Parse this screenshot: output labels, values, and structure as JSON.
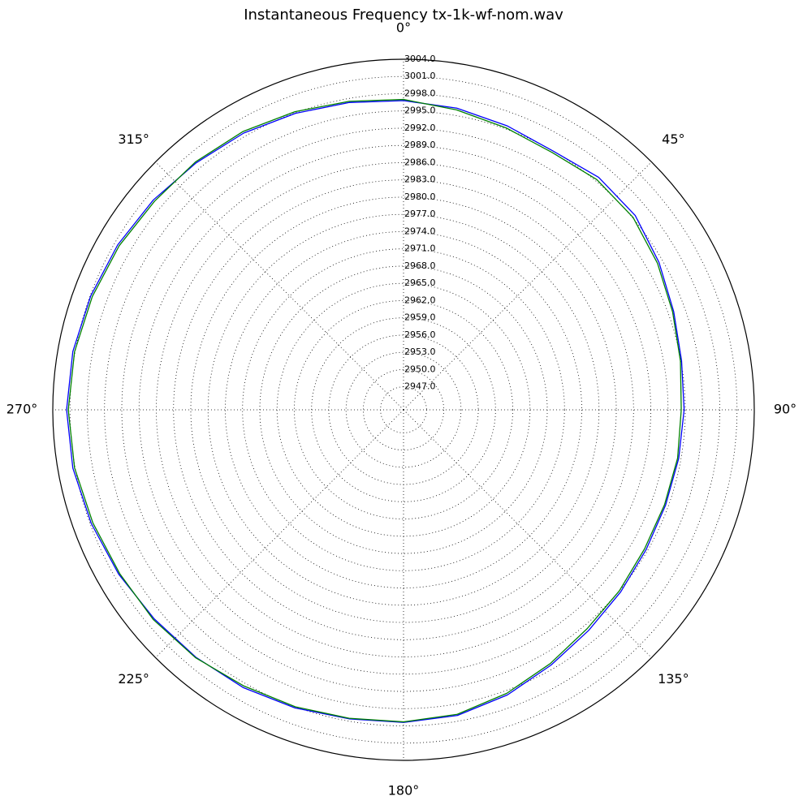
{
  "chart_data": {
    "type": "polar-line",
    "title": "Instantaneous Frequency  tx-1k-wf-nom.wav",
    "x": [
      0,
      10,
      20,
      30,
      40,
      50,
      60,
      70,
      80,
      90,
      100,
      110,
      120,
      130,
      140,
      150,
      160,
      170,
      180,
      190,
      200,
      210,
      220,
      230,
      240,
      250,
      260,
      270,
      280,
      290,
      300,
      310,
      320,
      330,
      340,
      350,
      360
    ],
    "series": [
      {
        "color": "#0000ff",
        "values": [
          2996.8,
          2996.3,
          2995.6,
          2995.0,
          2995.8,
          2995.6,
          2994.3,
          2993.0,
          2992.1,
          2991.8,
          2991.6,
          2991.5,
          2991.7,
          2992.3,
          2993.1,
          2994.3,
          2995.8,
          2997.0,
          2997.4,
          2997.6,
          2998.2,
          2998.8,
          2999.2,
          2999.6,
          3000.2,
          3000.8,
          3001.4,
          3001.6,
          3001.4,
          3000.9,
          3000.4,
          2999.8,
          2999.1,
          2998.6,
          2997.9,
          2997.3,
          2996.8
        ]
      },
      {
        "color": "#008000",
        "values": [
          2997.0,
          2996.0,
          2995.2,
          2994.7,
          2995.3,
          2995.1,
          2994.0,
          2992.8,
          2991.9,
          2991.3,
          2991.4,
          2991.3,
          2991.4,
          2992.0,
          2992.7,
          2994.0,
          2995.5,
          2996.8,
          2997.3,
          2997.5,
          2998.0,
          2998.5,
          2999.3,
          2999.8,
          3000.0,
          3000.5,
          3001.1,
          3001.3,
          3001.1,
          3000.6,
          3000.1,
          2999.5,
          2999.3,
          2998.9,
          2998.2,
          2997.5,
          2997.0
        ]
      }
    ],
    "ylim": [
      2943,
      3004
    ],
    "yticks": [
      {
        "value": 2947,
        "label": "2947.0"
      },
      {
        "value": 2950,
        "label": "2950.0"
      },
      {
        "value": 2953,
        "label": "2953.0"
      },
      {
        "value": 2956,
        "label": "2956.0"
      },
      {
        "value": 2959,
        "label": "2959.0"
      },
      {
        "value": 2962,
        "label": "2962.0"
      },
      {
        "value": 2965,
        "label": "2965.0"
      },
      {
        "value": 2968,
        "label": "2968.0"
      },
      {
        "value": 2971,
        "label": "2971.0"
      },
      {
        "value": 2974,
        "label": "2974.0"
      },
      {
        "value": 2977,
        "label": "2977.0"
      },
      {
        "value": 2980,
        "label": "2980.0"
      },
      {
        "value": 2983,
        "label": "2983.0"
      },
      {
        "value": 2986,
        "label": "2986.0"
      },
      {
        "value": 2989,
        "label": "2989.0"
      },
      {
        "value": 2992,
        "label": "2992.0"
      },
      {
        "value": 2995,
        "label": "2995.0"
      },
      {
        "value": 2998,
        "label": "2998.0"
      },
      {
        "value": 3001,
        "label": "3001.0"
      },
      {
        "value": 3004,
        "label": "3004.0"
      }
    ],
    "xticks": [
      {
        "value": 0,
        "label": "0°"
      },
      {
        "value": 45,
        "label": "45°"
      },
      {
        "value": 90,
        "label": "90°"
      },
      {
        "value": 135,
        "label": "135°"
      },
      {
        "value": 180,
        "label": "180°"
      },
      {
        "value": 225,
        "label": "225°"
      },
      {
        "value": 270,
        "label": "270°"
      },
      {
        "value": 315,
        "label": "315°"
      }
    ],
    "grid": true
  }
}
